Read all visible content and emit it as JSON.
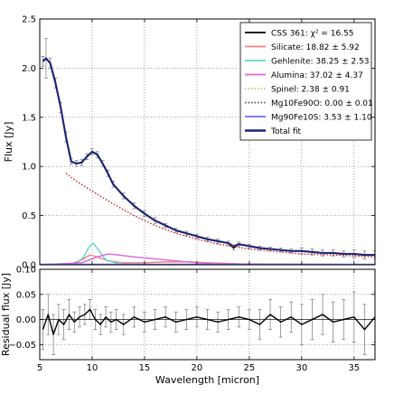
{
  "chart_data": [
    {
      "panel": "main",
      "type": "line",
      "xlabel": "",
      "ylabel": "Flux [Jy]",
      "xlim": [
        5,
        37
      ],
      "ylim": [
        0,
        2.5
      ],
      "xticks": [
        5,
        10,
        15,
        20,
        25,
        30,
        35
      ],
      "yticks": [
        0.0,
        0.5,
        1.0,
        1.5,
        2.0,
        2.5
      ],
      "ytick_labels": [
        "0.0",
        "0.5",
        "1.0",
        "1.5",
        "2.0",
        "2.5"
      ],
      "grid": true,
      "legend_position": "top-right",
      "legend": [
        {
          "label": "CSS 361: χ² = 16.55",
          "color": "#000000",
          "style": "solid"
        },
        {
          "label": "Silicate: 18.82 ± 5.92",
          "color": "#f08080",
          "style": "solid"
        },
        {
          "label": "Gehlenite: 38.25 ± 2.53",
          "color": "#5fd3d3",
          "style": "solid"
        },
        {
          "label": "Alumina: 37.02 ± 4.37",
          "color": "#dd66dd",
          "style": "solid"
        },
        {
          "label": "Spinel: 2.38 ± 0.91",
          "color": "#cccc66",
          "style": "dotted"
        },
        {
          "label": "Mg10Fe90O: 0.00 ± 0.01",
          "color": "#555555",
          "style": "dotted"
        },
        {
          "label": "Mg90Fe10S: 3.53 ± 1.10",
          "color": "#6b6bff",
          "style": "solid"
        },
        {
          "label": "Total fit",
          "color": "#1a237e",
          "style": "solid"
        }
      ],
      "series": [
        {
          "name": "CSS 361",
          "color": "#000000",
          "x": [
            5.3,
            5.6,
            6.0,
            6.5,
            7.0,
            7.5,
            8.0,
            8.5,
            9.0,
            9.5,
            10.0,
            10.5,
            11.0,
            11.5,
            12.0,
            13.0,
            14.0,
            15.0,
            16.0,
            17.0,
            18.0,
            19.0,
            20.0,
            21.0,
            22.0,
            23.0,
            23.5,
            24.0,
            25.0,
            26.0,
            27.0,
            28.0,
            29.0,
            30.0,
            31.0,
            32.0,
            33.0,
            34.0,
            35.0,
            36.0,
            37.0
          ],
          "y": [
            2.07,
            2.1,
            2.05,
            1.85,
            1.6,
            1.3,
            1.05,
            1.03,
            1.04,
            1.1,
            1.15,
            1.12,
            1.03,
            0.93,
            0.82,
            0.7,
            0.6,
            0.52,
            0.45,
            0.4,
            0.35,
            0.32,
            0.29,
            0.26,
            0.24,
            0.22,
            0.17,
            0.21,
            0.19,
            0.17,
            0.16,
            0.15,
            0.14,
            0.14,
            0.13,
            0.12,
            0.12,
            0.11,
            0.11,
            0.1,
            0.1
          ],
          "yerr": [
            0.05,
            0.2,
            0.05,
            0.05,
            0.05,
            0.05,
            0.03,
            0.03,
            0.03,
            0.03,
            0.03,
            0.03,
            0.03,
            0.03,
            0.03,
            0.03,
            0.03,
            0.03,
            0.03,
            0.02,
            0.02,
            0.02,
            0.02,
            0.02,
            0.02,
            0.02,
            0.02,
            0.02,
            0.02,
            0.02,
            0.02,
            0.02,
            0.02,
            0.03,
            0.03,
            0.03,
            0.03,
            0.03,
            0.04,
            0.04,
            0.04
          ]
        },
        {
          "name": "Total fit",
          "color": "#1a237e",
          "x": [
            5.3,
            5.6,
            6.0,
            6.5,
            7.0,
            7.5,
            8.0,
            8.5,
            9.0,
            9.5,
            10.0,
            10.5,
            11.0,
            11.5,
            12.0,
            13.0,
            14.0,
            15.0,
            16.0,
            17.0,
            18.0,
            19.0,
            20.0,
            21.0,
            22.0,
            23.0,
            23.5,
            24.0,
            25.0,
            26.0,
            27.0,
            28.0,
            29.0,
            30.0,
            31.0,
            32.0,
            33.0,
            34.0,
            35.0,
            36.0,
            37.0
          ],
          "y": [
            2.07,
            2.1,
            2.05,
            1.85,
            1.6,
            1.3,
            1.05,
            1.03,
            1.04,
            1.1,
            1.15,
            1.12,
            1.03,
            0.93,
            0.82,
            0.7,
            0.6,
            0.52,
            0.45,
            0.4,
            0.35,
            0.32,
            0.29,
            0.26,
            0.24,
            0.22,
            0.19,
            0.21,
            0.19,
            0.17,
            0.16,
            0.15,
            0.14,
            0.14,
            0.13,
            0.12,
            0.12,
            0.11,
            0.11,
            0.1,
            0.1
          ]
        },
        {
          "name": "Continuum",
          "color": "#cc2222",
          "style": "dotted",
          "x": [
            7.5,
            8.5,
            10.0,
            12.0,
            14.0,
            16.0,
            18.0,
            20.0,
            22.0,
            25.0,
            28.0,
            30.0,
            33.0,
            37.0
          ],
          "y": [
            0.93,
            0.85,
            0.75,
            0.62,
            0.5,
            0.4,
            0.32,
            0.26,
            0.21,
            0.16,
            0.13,
            0.11,
            0.1,
            0.08
          ]
        },
        {
          "name": "Silicate",
          "color": "#f08080",
          "x": [
            5,
            8,
            9,
            9.8,
            10.5,
            11.5,
            13,
            15,
            17,
            19,
            21,
            24,
            37
          ],
          "y": [
            0.0,
            0.01,
            0.05,
            0.1,
            0.08,
            0.04,
            0.02,
            0.02,
            0.03,
            0.03,
            0.02,
            0.01,
            0.0
          ]
        },
        {
          "name": "Gehlenite",
          "color": "#5fd3d3",
          "x": [
            5,
            8.5,
            9.2,
            9.7,
            10.1,
            10.6,
            11.3,
            12.5,
            15,
            37
          ],
          "y": [
            0.0,
            0.01,
            0.08,
            0.18,
            0.22,
            0.15,
            0.05,
            0.01,
            0.0,
            0.0
          ]
        },
        {
          "name": "Alumina",
          "color": "#dd66dd",
          "x": [
            5,
            9,
            10.5,
            11.5,
            12.5,
            14,
            16,
            18,
            20,
            22,
            25,
            37
          ],
          "y": [
            0.0,
            0.02,
            0.08,
            0.11,
            0.1,
            0.08,
            0.06,
            0.04,
            0.02,
            0.01,
            0.005,
            0.0
          ]
        },
        {
          "name": "Mg90Fe10S",
          "color": "#6b6bff",
          "x": [
            5,
            37
          ],
          "y": [
            0.005,
            0.005
          ]
        }
      ]
    },
    {
      "panel": "residual",
      "type": "line",
      "xlabel": "Wavelength [micron]",
      "ylabel": "Residual flux [Jy]",
      "xlim": [
        5,
        37
      ],
      "ylim": [
        -0.08,
        0.1
      ],
      "xticks": [
        5,
        10,
        15,
        20,
        25,
        30,
        35
      ],
      "yticks": [
        -0.05,
        0.0,
        0.05,
        0.1
      ],
      "ytick_labels": [
        "−0.05",
        "0.00",
        "0.05",
        "0.10"
      ],
      "grid": true,
      "series": [
        {
          "name": "Residual",
          "color": "#000000",
          "x": [
            5.3,
            5.8,
            6.3,
            6.8,
            7.3,
            7.8,
            8.3,
            8.8,
            9.3,
            9.8,
            10.3,
            10.8,
            11.3,
            11.8,
            12.3,
            13,
            14,
            15,
            16,
            17,
            18,
            19,
            20,
            21,
            22,
            23,
            24,
            25,
            26,
            27,
            28,
            29,
            30,
            31,
            32,
            33,
            34,
            35,
            36,
            37
          ],
          "y": [
            -0.02,
            0.01,
            -0.03,
            0.0,
            -0.01,
            0.01,
            -0.005,
            0.005,
            0.01,
            0.02,
            0.0,
            -0.01,
            0.005,
            -0.005,
            0.0,
            -0.01,
            0.005,
            -0.005,
            0.0,
            0.005,
            -0.005,
            0.0,
            0.005,
            0.0,
            -0.005,
            0.0,
            0.005,
            0.0,
            -0.01,
            0.01,
            -0.005,
            0.005,
            -0.01,
            0.0,
            0.01,
            -0.005,
            0.0,
            0.005,
            -0.02,
            0.005
          ],
          "yerr": [
            0.04,
            0.04,
            0.04,
            0.03,
            0.03,
            0.03,
            0.02,
            0.02,
            0.02,
            0.02,
            0.02,
            0.02,
            0.02,
            0.02,
            0.02,
            0.02,
            0.02,
            0.02,
            0.02,
            0.02,
            0.02,
            0.02,
            0.02,
            0.02,
            0.02,
            0.02,
            0.02,
            0.02,
            0.03,
            0.03,
            0.03,
            0.03,
            0.04,
            0.04,
            0.04,
            0.04,
            0.04,
            0.05,
            0.05,
            0.05
          ]
        }
      ]
    }
  ]
}
